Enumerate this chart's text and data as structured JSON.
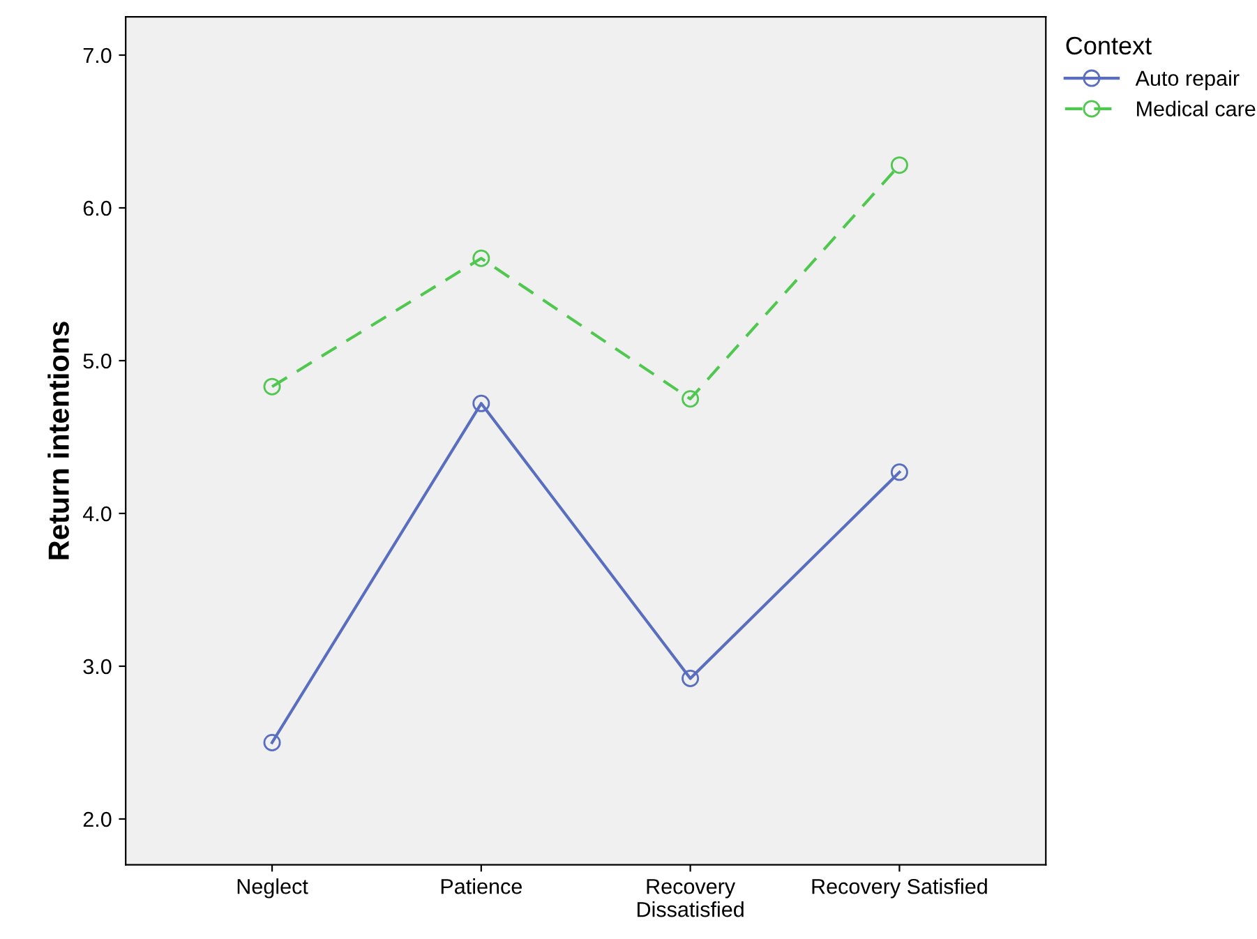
{
  "chart_data": {
    "type": "line",
    "ylabel": "Return intentions",
    "legend_title": "Context",
    "categories": [
      "Neglect",
      "Patience",
      "Recovery\nDissatisfied",
      "Recovery Satisfied"
    ],
    "series": [
      {
        "name": "Auto repair",
        "color": "#5a6ec0",
        "values": [
          2.5,
          4.72,
          2.92,
          4.27
        ],
        "line_style": "solid"
      },
      {
        "name": "Medical care",
        "color": "#50c850",
        "values": [
          4.83,
          5.67,
          4.75,
          6.28
        ],
        "line_style": "dashed"
      }
    ],
    "ylim": [
      1.7,
      7.25
    ],
    "yticks": [
      {
        "value": 2,
        "label": "2.0"
      },
      {
        "value": 3,
        "label": "3.0"
      },
      {
        "value": 4,
        "label": "4.0"
      },
      {
        "value": 5,
        "label": "5.0"
      },
      {
        "value": 6,
        "label": "6.0"
      },
      {
        "value": 7,
        "label": "7.0"
      }
    ],
    "marker": "circle",
    "grid": false,
    "legend": "top right"
  }
}
